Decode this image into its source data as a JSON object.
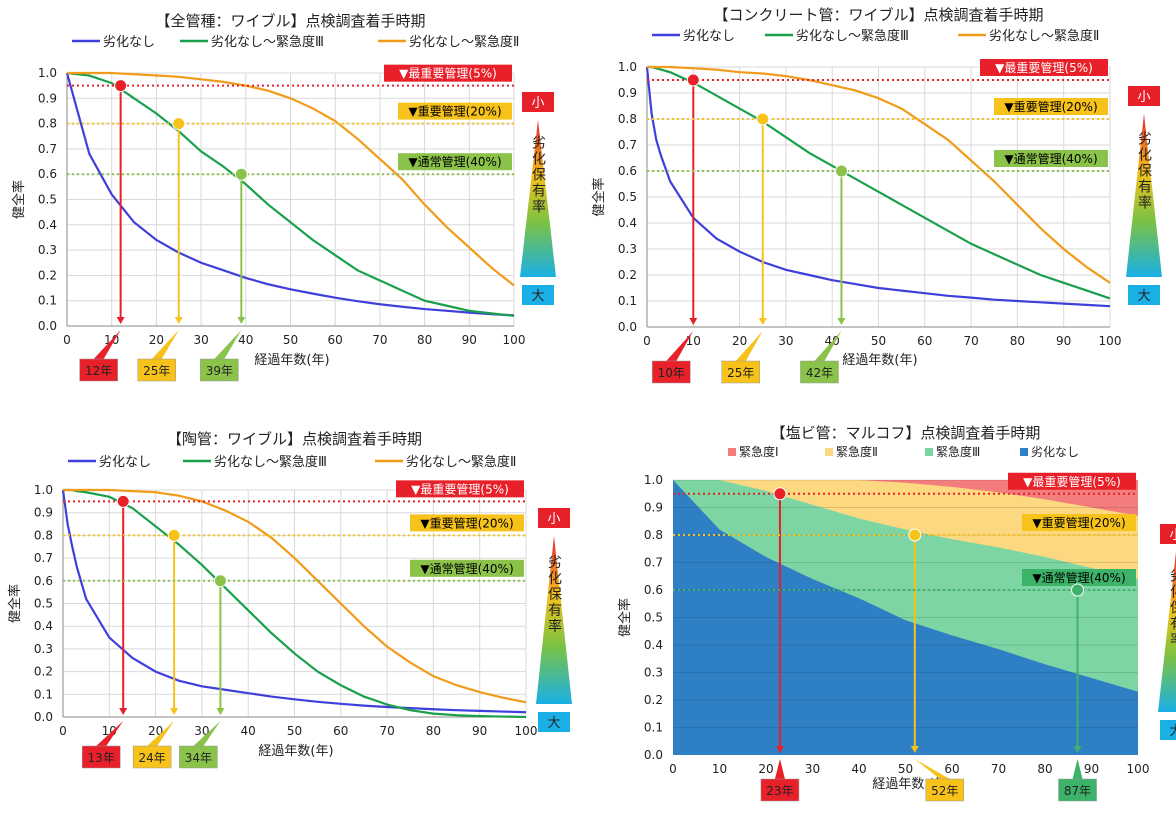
{
  "chart_data": [
    {
      "type": "line",
      "title": "【全管種：ワイブル】点検調査着手時期",
      "xlabel": "経過年数(年)",
      "ylabel": "健全率",
      "xlim": [
        0,
        100
      ],
      "ylim": [
        0.0,
        1.0
      ],
      "x_ticks": [
        "0",
        "10",
        "20",
        "30",
        "40",
        "50",
        "60",
        "70",
        "80",
        "90",
        "100"
      ],
      "y_ticks": [
        "0.0",
        "0.1",
        "0.2",
        "0.3",
        "0.4",
        "0.5",
        "0.6",
        "0.7",
        "0.8",
        "0.9",
        "1.0"
      ],
      "grid": true,
      "legend": "top",
      "x": [
        0,
        5,
        10,
        15,
        20,
        25,
        30,
        35,
        40,
        45,
        50,
        55,
        60,
        65,
        70,
        75,
        80,
        85,
        90,
        95,
        100
      ],
      "series": [
        {
          "name": "劣化なし",
          "color": "#3f3fdb",
          "values": [
            1.0,
            0.68,
            0.52,
            0.41,
            0.34,
            0.29,
            0.25,
            0.22,
            0.19,
            0.165,
            0.145,
            0.128,
            0.112,
            0.098,
            0.086,
            0.076,
            0.067,
            0.06,
            0.053,
            0.047,
            0.042
          ]
        },
        {
          "name": "劣化なし～緊急度Ⅲ",
          "color": "#19a04b",
          "values": [
            1.0,
            0.99,
            0.96,
            0.9,
            0.84,
            0.77,
            0.69,
            0.63,
            0.56,
            0.48,
            0.41,
            0.34,
            0.28,
            0.22,
            0.18,
            0.14,
            0.1,
            0.08,
            0.06,
            0.05,
            0.04
          ]
        },
        {
          "name": "劣化なし～緊急度Ⅱ",
          "color": "#f29b1a",
          "values": [
            1.0,
            1.0,
            1.0,
            0.995,
            0.99,
            0.985,
            0.975,
            0.965,
            0.95,
            0.93,
            0.9,
            0.86,
            0.81,
            0.74,
            0.66,
            0.58,
            0.48,
            0.39,
            0.31,
            0.23,
            0.16
          ]
        }
      ],
      "thresholds": [
        {
          "label": "▼最重要管理(5%)",
          "y": 0.95,
          "color": "#e8202a",
          "text_color": "#ffffff",
          "point_x": 12,
          "year_label": "12年"
        },
        {
          "label": "▼重要管理(20%)",
          "y": 0.8,
          "color": "#f7c21a",
          "text_color": "#000000",
          "point_x": 25,
          "year_label": "25年"
        },
        {
          "label": "▼通常管理(40%)",
          "y": 0.6,
          "color": "#8bc34a",
          "text_color": "#000000",
          "point_x": 39,
          "year_label": "39年"
        }
      ]
    },
    {
      "type": "line",
      "title": "【コンクリート管：ワイブル】点検調査着手時期",
      "xlabel": "経過年数(年)",
      "ylabel": "健全率",
      "xlim": [
        0,
        100
      ],
      "ylim": [
        0.0,
        1.0
      ],
      "x_ticks": [
        "0",
        "10",
        "20",
        "30",
        "40",
        "50",
        "60",
        "70",
        "80",
        "90",
        "100"
      ],
      "y_ticks": [
        "0.0",
        "0.1",
        "0.2",
        "0.3",
        "0.4",
        "0.5",
        "0.6",
        "0.7",
        "0.8",
        "0.9",
        "1.0"
      ],
      "grid": true,
      "legend": "top",
      "x": [
        0,
        1,
        2,
        3,
        5,
        10,
        15,
        20,
        25,
        30,
        35,
        40,
        45,
        50,
        55,
        60,
        65,
        70,
        75,
        80,
        85,
        90,
        95,
        100
      ],
      "series": [
        {
          "name": "劣化なし",
          "color": "#3f3fdb",
          "values": [
            1.0,
            0.82,
            0.72,
            0.66,
            0.56,
            0.42,
            0.34,
            0.29,
            0.25,
            0.22,
            0.2,
            0.18,
            0.165,
            0.15,
            0.14,
            0.13,
            0.12,
            0.113,
            0.105,
            0.1,
            0.095,
            0.09,
            0.085,
            0.08
          ]
        },
        {
          "name": "劣化なし～緊急度Ⅲ",
          "color": "#19a04b",
          "values": [
            1.0,
            1.0,
            0.995,
            0.99,
            0.98,
            0.94,
            0.89,
            0.84,
            0.79,
            0.73,
            0.67,
            0.62,
            0.57,
            0.52,
            0.47,
            0.42,
            0.37,
            0.32,
            0.28,
            0.24,
            0.2,
            0.17,
            0.14,
            0.11
          ]
        },
        {
          "name": "劣化なし～緊急度Ⅱ",
          "color": "#f29b1a",
          "values": [
            1.0,
            1.0,
            1.0,
            1.0,
            1.0,
            0.995,
            0.99,
            0.98,
            0.975,
            0.965,
            0.95,
            0.93,
            0.91,
            0.88,
            0.84,
            0.78,
            0.72,
            0.64,
            0.56,
            0.47,
            0.38,
            0.3,
            0.23,
            0.17
          ]
        }
      ],
      "thresholds": [
        {
          "label": "▼最重要管理(5%)",
          "y": 0.95,
          "color": "#e8202a",
          "text_color": "#ffffff",
          "point_x": 10,
          "year_label": "10年"
        },
        {
          "label": "▼重要管理(20%)",
          "y": 0.8,
          "color": "#f7c21a",
          "text_color": "#000000",
          "point_x": 25,
          "year_label": "25年"
        },
        {
          "label": "▼通常管理(40%)",
          "y": 0.6,
          "color": "#8bc34a",
          "text_color": "#000000",
          "point_x": 42,
          "year_label": "42年"
        }
      ]
    },
    {
      "type": "line",
      "title": "【陶管：ワイブル】点検調査着手時期",
      "xlabel": "経過年数(年)",
      "ylabel": "健全率",
      "xlim": [
        0,
        100
      ],
      "ylim": [
        0.0,
        1.0
      ],
      "x_ticks": [
        "0",
        "10",
        "20",
        "30",
        "40",
        "50",
        "60",
        "70",
        "80",
        "90",
        "100"
      ],
      "y_ticks": [
        "0.0",
        "0.1",
        "0.2",
        "0.3",
        "0.4",
        "0.5",
        "0.6",
        "0.7",
        "0.8",
        "0.9",
        "1.0"
      ],
      "grid": true,
      "legend": "top",
      "x": [
        0,
        1,
        2,
        3,
        5,
        10,
        15,
        20,
        25,
        30,
        35,
        40,
        45,
        50,
        55,
        60,
        65,
        70,
        75,
        80,
        85,
        90,
        95,
        100
      ],
      "series": [
        {
          "name": "劣化なし",
          "color": "#3f3fdb",
          "values": [
            1.0,
            0.85,
            0.75,
            0.66,
            0.52,
            0.35,
            0.26,
            0.2,
            0.16,
            0.135,
            0.12,
            0.105,
            0.09,
            0.078,
            0.067,
            0.058,
            0.05,
            0.044,
            0.039,
            0.034,
            0.03,
            0.027,
            0.024,
            0.021
          ]
        },
        {
          "name": "劣化なし～緊急度Ⅲ",
          "color": "#19a04b",
          "values": [
            1.0,
            1.0,
            1.0,
            0.995,
            0.99,
            0.97,
            0.92,
            0.84,
            0.76,
            0.67,
            0.57,
            0.47,
            0.37,
            0.28,
            0.2,
            0.14,
            0.09,
            0.055,
            0.03,
            0.015,
            0.008,
            0.004,
            0.002,
            0.0
          ]
        },
        {
          "name": "劣化なし～緊急度Ⅱ",
          "color": "#f29b1a",
          "values": [
            1.0,
            1.0,
            1.0,
            1.0,
            1.0,
            1.0,
            0.995,
            0.99,
            0.975,
            0.95,
            0.91,
            0.86,
            0.79,
            0.7,
            0.6,
            0.5,
            0.4,
            0.31,
            0.24,
            0.18,
            0.14,
            0.11,
            0.085,
            0.065
          ]
        }
      ],
      "thresholds": [
        {
          "label": "▼最重要管理(5%)",
          "y": 0.95,
          "color": "#e8202a",
          "text_color": "#ffffff",
          "point_x": 13,
          "year_label": "13年"
        },
        {
          "label": "▼重要管理(20%)",
          "y": 0.8,
          "color": "#f7c21a",
          "text_color": "#000000",
          "point_x": 24,
          "year_label": "24年"
        },
        {
          "label": "▼通常管理(40%)",
          "y": 0.6,
          "color": "#8bc34a",
          "text_color": "#000000",
          "point_x": 34,
          "year_label": "34年"
        }
      ]
    },
    {
      "type": "area",
      "title": "【塩ビ管：マルコフ】点検調査着手時期",
      "xlabel": "経過年数 (年)",
      "ylabel": "健全率",
      "xlim": [
        0,
        100
      ],
      "ylim": [
        0.0,
        1.0
      ],
      "x_ticks": [
        "0",
        "10",
        "20",
        "30",
        "40",
        "50",
        "60",
        "70",
        "80",
        "90",
        "100"
      ],
      "y_ticks": [
        "0.0",
        "0.1",
        "0.2",
        "0.3",
        "0.4",
        "0.5",
        "0.6",
        "0.7",
        "0.8",
        "0.9",
        "1.0"
      ],
      "grid": true,
      "legend": "top",
      "x": [
        0,
        10,
        20,
        30,
        40,
        50,
        60,
        70,
        80,
        90,
        100
      ],
      "series": [
        {
          "name": "緊急度Ⅰ",
          "color": "#f37d7d",
          "values": [
            0.0,
            0.0,
            0.0,
            0.0,
            0.0,
            0.01,
            0.025,
            0.045,
            0.07,
            0.1,
            0.13
          ]
        },
        {
          "name": "緊急度Ⅱ",
          "color": "#fcd980",
          "values": [
            0.0,
            0.0,
            0.04,
            0.09,
            0.14,
            0.17,
            0.19,
            0.2,
            0.21,
            0.22,
            0.23
          ]
        },
        {
          "name": "緊急度Ⅲ",
          "color": "#7dd5a3",
          "values": [
            0.0,
            0.18,
            0.24,
            0.27,
            0.29,
            0.33,
            0.35,
            0.37,
            0.39,
            0.4,
            0.41
          ]
        },
        {
          "name": "劣化なし",
          "color": "#2f7fc4",
          "values": [
            1.0,
            0.82,
            0.72,
            0.64,
            0.57,
            0.49,
            0.435,
            0.385,
            0.33,
            0.28,
            0.23
          ]
        }
      ],
      "thresholds": [
        {
          "label": "▼最重要管理(5%)",
          "y": 0.95,
          "color": "#e8202a",
          "text_color": "#ffffff",
          "point_x": 23,
          "year_label": "23年"
        },
        {
          "label": "▼重要管理(20%)",
          "y": 0.8,
          "color": "#f7c21a",
          "text_color": "#000000",
          "point_x": 52,
          "year_label": "52年"
        },
        {
          "label": "▼通常管理(40%)",
          "y": 0.6,
          "color": "#3db36a",
          "text_color": "#000000",
          "point_x": 87,
          "year_label": "87年"
        }
      ]
    }
  ],
  "side_scale": {
    "top_label": "小",
    "bottom_label": "大",
    "caption": "劣化保有率",
    "top_color": "#e8202a",
    "bottom_color": "#1ab0e6"
  }
}
